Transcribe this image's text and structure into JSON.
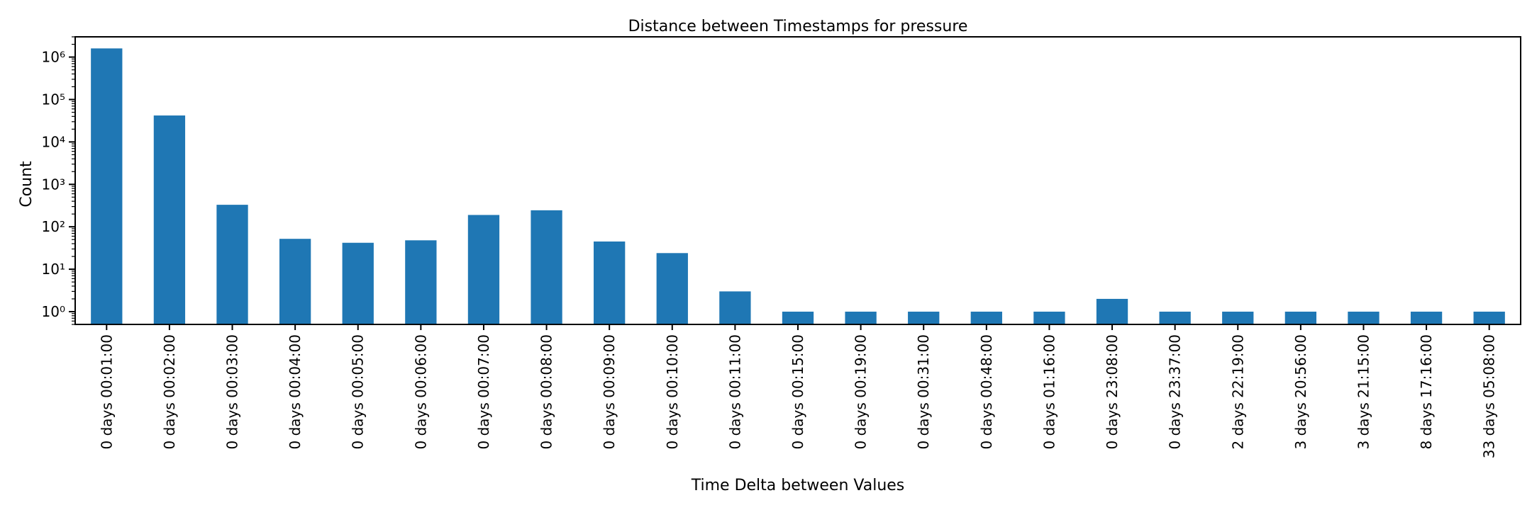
{
  "chart_data": {
    "type": "bar",
    "title": "Distance between Timestamps for pressure",
    "xlabel": "Time Delta between Values",
    "ylabel": "Count",
    "yscale": "log",
    "ylim": [
      0.5,
      3000000
    ],
    "grid": false,
    "legend": "none",
    "color": "#1f77b4",
    "categories": [
      "0 days 00:01:00",
      "0 days 00:02:00",
      "0 days 00:03:00",
      "0 days 00:04:00",
      "0 days 00:05:00",
      "0 days 00:06:00",
      "0 days 00:07:00",
      "0 days 00:08:00",
      "0 days 00:09:00",
      "0 days 00:10:00",
      "0 days 00:11:00",
      "0 days 00:15:00",
      "0 days 00:19:00",
      "0 days 00:31:00",
      "0 days 00:48:00",
      "0 days 01:16:00",
      "0 days 23:08:00",
      "0 days 23:37:00",
      "2 days 22:19:00",
      "3 days 20:56:00",
      "3 days 21:15:00",
      "8 days 17:16:00",
      "33 days 05:08:00"
    ],
    "values": [
      1600000,
      42000,
      330,
      52,
      42,
      48,
      190,
      245,
      45,
      24,
      3,
      1,
      1,
      1,
      1,
      1,
      2,
      1,
      1,
      1,
      1,
      1,
      1
    ],
    "yticks": [
      {
        "value": 1,
        "label": "10⁰"
      },
      {
        "value": 10,
        "label": "10¹"
      },
      {
        "value": 100,
        "label": "10²"
      },
      {
        "value": 1000,
        "label": "10³"
      },
      {
        "value": 10000,
        "label": "10⁴"
      },
      {
        "value": 100000,
        "label": "10⁵"
      },
      {
        "value": 1000000,
        "label": "10⁶"
      }
    ]
  }
}
